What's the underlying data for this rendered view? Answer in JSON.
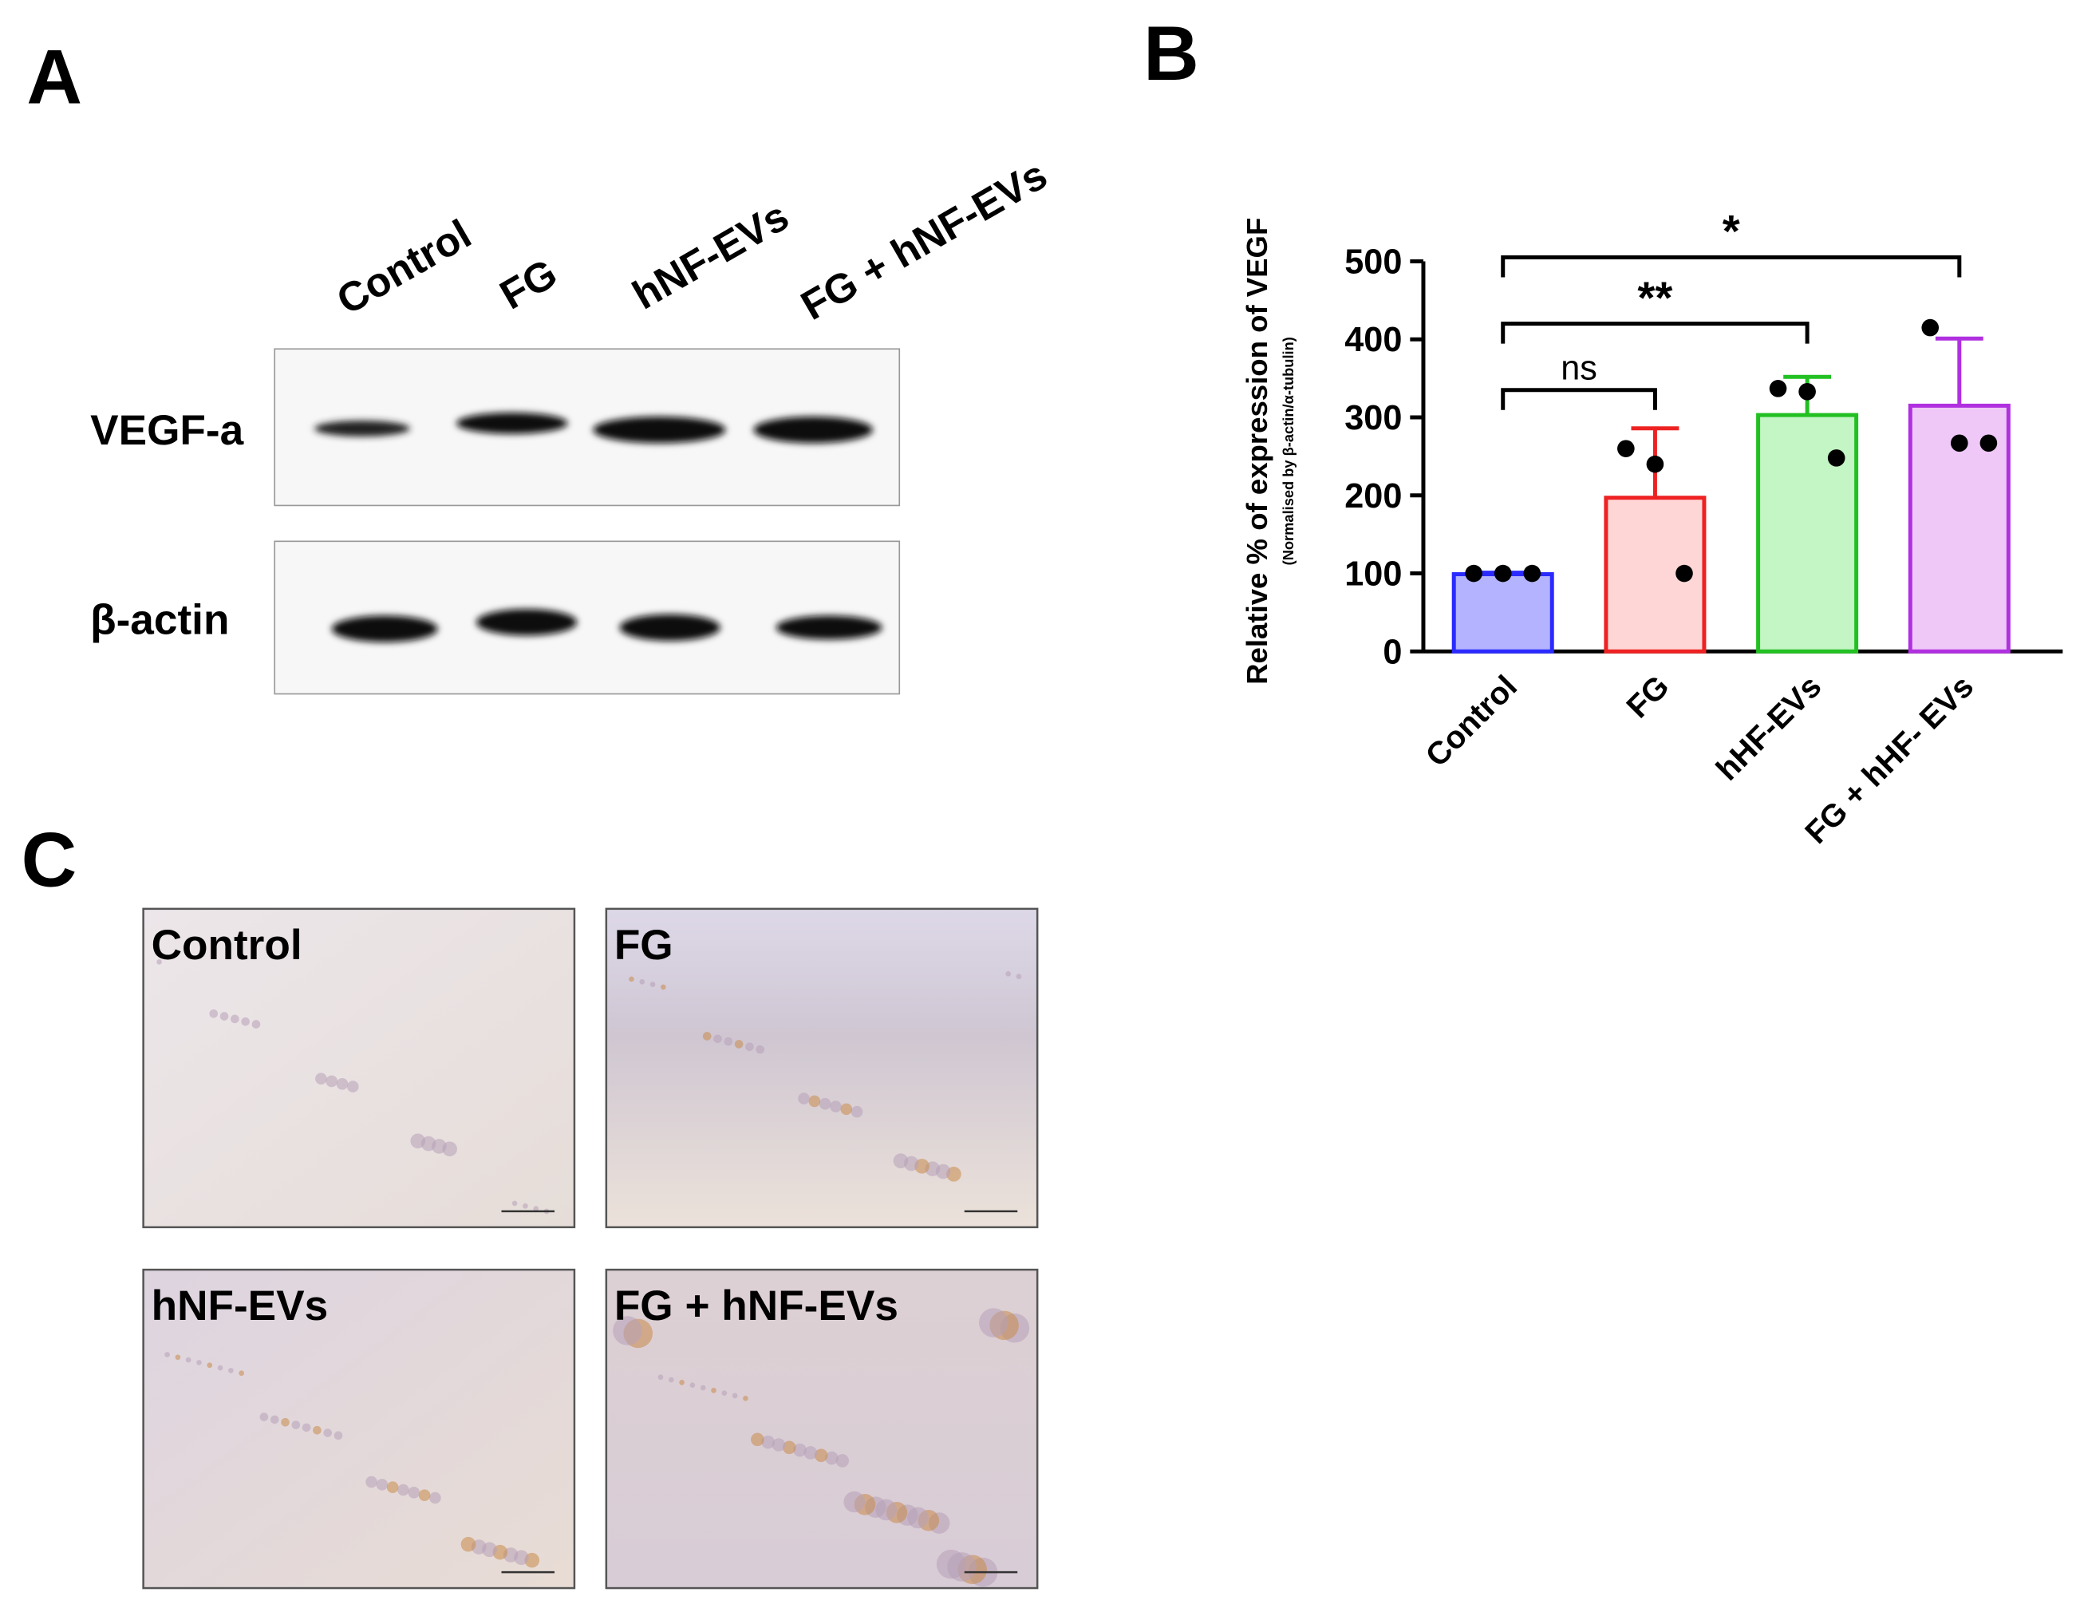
{
  "panels": {
    "a": {
      "letter": "A",
      "lanes": [
        "Control",
        "FG",
        "hNF-EVs",
        "FG + hNF-EVs"
      ],
      "rows": [
        "VEGF-a",
        "β-actin"
      ]
    },
    "b": {
      "letter": "B"
    },
    "c": {
      "letter": "C",
      "images": [
        "Control",
        "FG",
        "hNF-EVs",
        "FG + hNF-EVs"
      ]
    }
  },
  "chart_data": {
    "type": "bar",
    "ylabel": "Relative % of expression of VEGF",
    "ylabel_sub": "(Normalised by β-actin/α-tubulin)",
    "categories": [
      "Control",
      "FG",
      "hHF-EVs",
      "FG + hHF- EVs"
    ],
    "values": [
      99,
      197,
      303,
      315
    ],
    "errors": [
      2,
      89,
      49,
      86
    ],
    "points": [
      [
        100,
        100,
        100
      ],
      [
        260,
        240,
        100
      ],
      [
        337,
        333,
        248
      ],
      [
        415,
        267,
        267
      ]
    ],
    "colors": [
      "#b3b3ff",
      "#ffd6d6",
      "#c4f5c4",
      "#efc8f7"
    ],
    "edge_colors": [
      "#2a2aff",
      "#ee2222",
      "#22c022",
      "#b030e0"
    ],
    "ylim": [
      0,
      500
    ],
    "yticks": [
      0,
      100,
      200,
      300,
      400,
      500
    ],
    "significance": [
      {
        "groups": [
          0,
          1
        ],
        "label": "ns"
      },
      {
        "groups": [
          0,
          2
        ],
        "label": "**"
      },
      {
        "groups": [
          0,
          3
        ],
        "label": "*"
      }
    ]
  }
}
